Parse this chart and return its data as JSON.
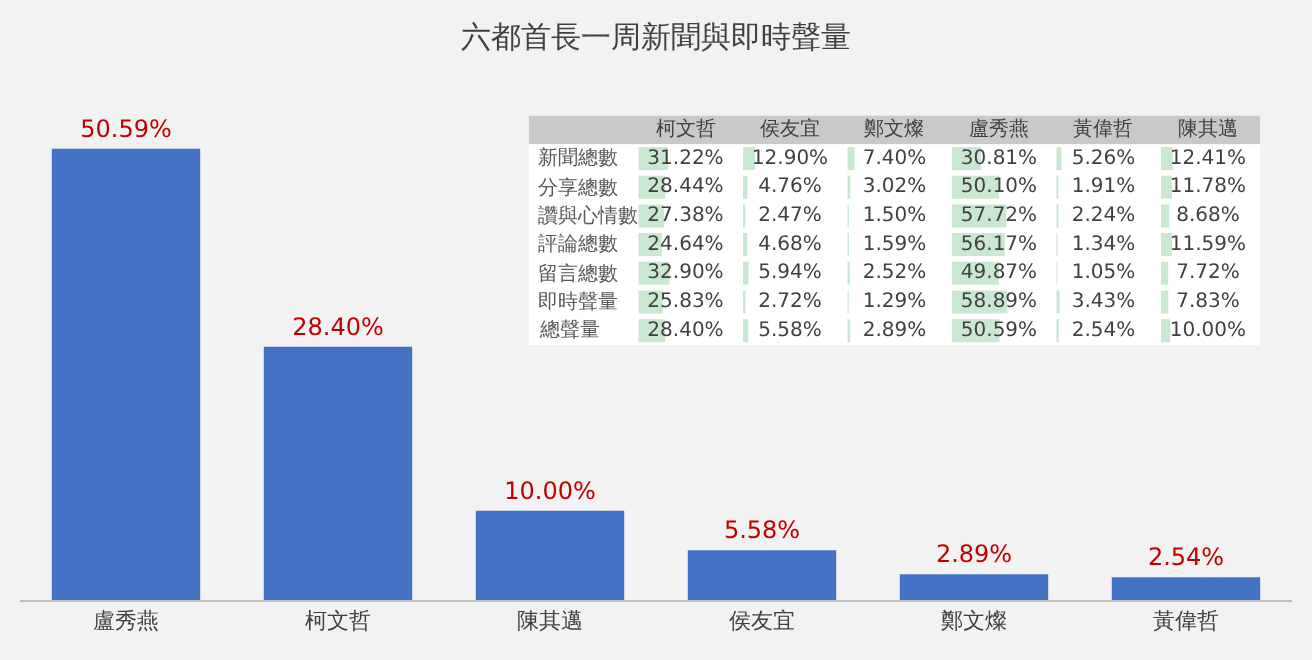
{
  "chart_data": [
    {
      "type": "bar",
      "title": "六都首長一周新聞與即時聲量",
      "categories": [
        "盧秀燕",
        "柯文哲",
        "陳其邁",
        "侯友宜",
        "鄭文燦",
        "黃偉哲"
      ],
      "values": [
        50.59,
        28.4,
        10.0,
        5.58,
        2.89,
        2.54
      ],
      "value_labels": [
        "50.59%",
        "28.40%",
        "10.00%",
        "5.58%",
        "2.89%",
        "2.54%"
      ],
      "color": "#4472c4"
    },
    {
      "type": "heatmap",
      "categories": [
        "柯文哲",
        "侯友宜",
        "鄭文燦",
        "盧秀燕",
        "黃偉哲",
        "陳其邁"
      ],
      "y_categories": [
        "新聞總數",
        "分享總數",
        "讚與心情數",
        "評論總數",
        "留言總數",
        "即時聲量",
        "總聲量"
      ],
      "cells": [
        [
          31.22,
          12.9,
          7.4,
          30.81,
          5.26,
          12.41
        ],
        [
          28.44,
          4.76,
          3.02,
          50.1,
          1.91,
          11.78
        ],
        [
          27.38,
          2.47,
          1.5,
          57.72,
          2.24,
          8.68
        ],
        [
          24.64,
          4.68,
          1.59,
          56.17,
          1.34,
          11.59
        ],
        [
          32.9,
          5.94,
          2.52,
          49.87,
          1.05,
          7.72
        ],
        [
          25.83,
          2.72,
          1.29,
          58.89,
          3.43,
          7.83
        ],
        [
          28.4,
          5.58,
          2.89,
          50.59,
          2.54,
          10.0
        ]
      ],
      "cell_labels": [
        [
          "31.22%",
          "12.90%",
          "7.40%",
          "30.81%",
          "5.26%",
          "12.41%"
        ],
        [
          "28.44%",
          "4.76%",
          "3.02%",
          "50.10%",
          "1.91%",
          "11.78%"
        ],
        [
          "27.38%",
          "2.47%",
          "1.50%",
          "57.72%",
          "2.24%",
          "8.68%"
        ],
        [
          "24.64%",
          "4.68%",
          "1.59%",
          "56.17%",
          "1.34%",
          "11.59%"
        ],
        [
          "32.90%",
          "5.94%",
          "2.52%",
          "49.87%",
          "1.05%",
          "7.72%"
        ],
        [
          "25.83%",
          "2.72%",
          "1.29%",
          "58.89%",
          "3.43%",
          "7.83%"
        ],
        [
          "28.40%",
          "5.58%",
          "2.89%",
          "50.59%",
          "2.54%",
          "10.00%"
        ]
      ],
      "color": "#63be7b"
    }
  ]
}
